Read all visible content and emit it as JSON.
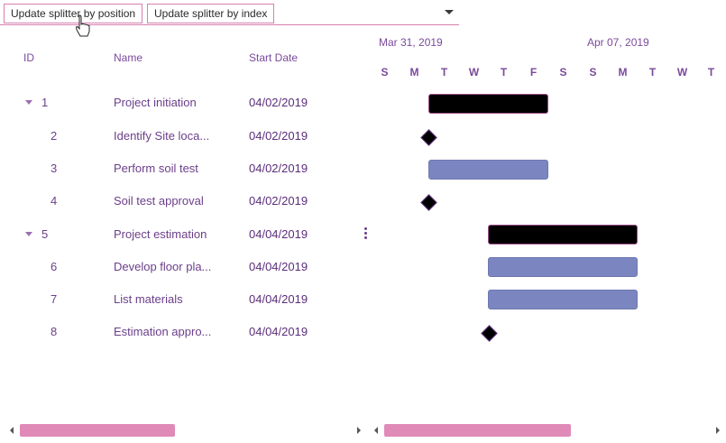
{
  "toolbar": {
    "btn_position": "Update splitter by position",
    "btn_index": "Update splitter by index"
  },
  "grid": {
    "headers": {
      "id": "ID",
      "name": "Name",
      "start": "Start Date"
    },
    "rows": [
      {
        "id": "1",
        "name": "Project initiation",
        "start": "04/02/2019"
      },
      {
        "id": "2",
        "name": "Identify Site loca...",
        "start": "04/02/2019"
      },
      {
        "id": "3",
        "name": "Perform soil test",
        "start": "04/02/2019"
      },
      {
        "id": "4",
        "name": "Soil test approval",
        "start": "04/02/2019"
      },
      {
        "id": "5",
        "name": "Project estimation",
        "start": "04/04/2019"
      },
      {
        "id": "6",
        "name": "Develop floor pla...",
        "start": "04/04/2019"
      },
      {
        "id": "7",
        "name": "List materials",
        "start": "04/04/2019"
      },
      {
        "id": "8",
        "name": "Estimation appro...",
        "start": "04/04/2019"
      }
    ]
  },
  "timeline": {
    "weeks": [
      "Mar 31, 2019",
      "Apr 07, 2019"
    ],
    "days": [
      "S",
      "M",
      "T",
      "W",
      "T",
      "F",
      "S",
      "S",
      "M",
      "T",
      "W",
      "T"
    ]
  },
  "colors": {
    "accent": "#d77fb0",
    "text": "#6b3f8a",
    "parent_bar": "#000000",
    "child_bar": "#7b86c0",
    "scroll_thumb": "#e08ab8"
  },
  "icons": {
    "expand": "chevron-down-icon",
    "dropdown": "caret-down-icon",
    "cursor": "hand-pointer-icon",
    "splitter": "vertical-dots-icon"
  }
}
